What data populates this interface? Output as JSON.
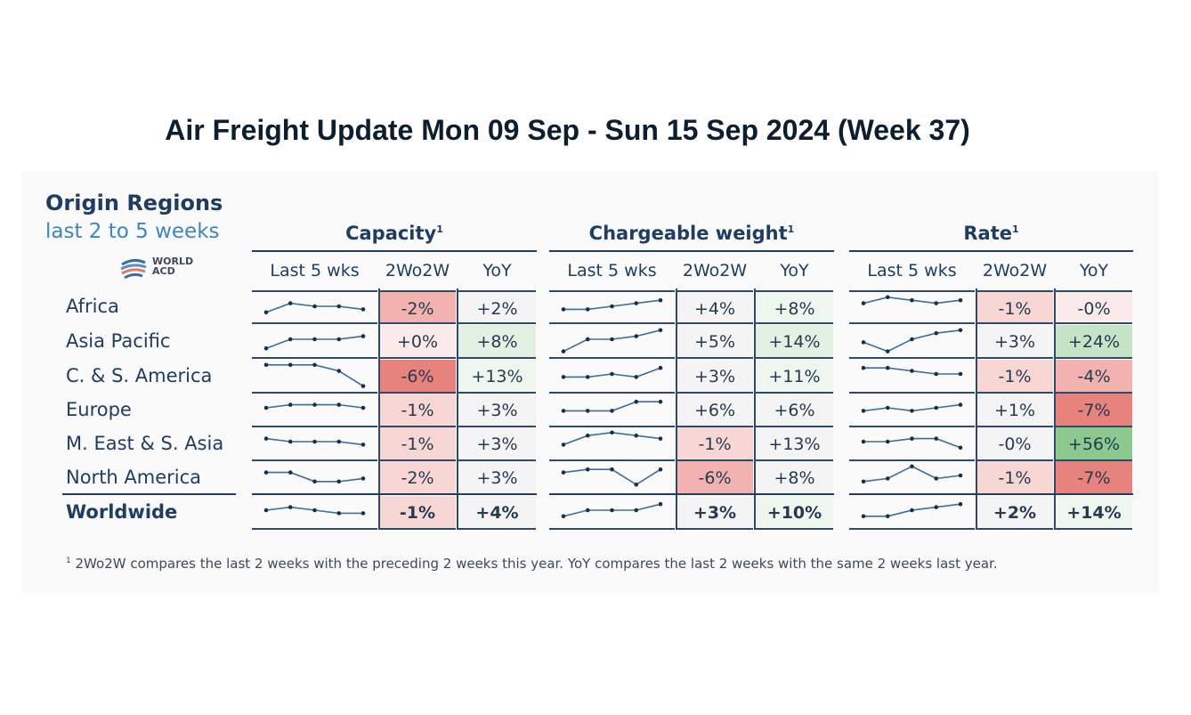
{
  "title": "Air Freight Update Mon 09 Sep - Sun 15 Sep 2024 (Week 37)",
  "left_header": {
    "title": "Origin Regions",
    "subtitle": "last 2 to 5 weeks"
  },
  "logo": {
    "line1": "WORLD",
    "line2": "ACD"
  },
  "colors": {
    "red_strong": "#e8827c",
    "red_mid": "#f2b3b0",
    "red_light": "#f7d6d4",
    "red_faint": "#faeae9",
    "green_strong": "#8cc98e",
    "green_mid": "#c5e4c6",
    "green_light": "#e3f1e3",
    "green_faint": "#eef6ee",
    "neutral": "#f4f4f5",
    "line": "#3a6ea0"
  },
  "chart_data": {
    "type": "table",
    "title": "Air Freight Update Mon 09 Sep - Sun 15 Sep 2024 (Week 37)",
    "footnote_marker": "1",
    "footnote": "2Wo2W compares the last 2 weeks with the preceding 2 weeks this year. YoY compares the last 2 weeks with the same 2 weeks last year.",
    "regions": [
      "Africa",
      "Asia Pacific",
      "C. & S. America",
      "Europe",
      "M. East & S. Asia",
      "North America",
      "Worldwide"
    ],
    "groups": [
      {
        "name": "Capacity",
        "marker": "1",
        "columns": [
          "Last 5 wks",
          "2Wo2W",
          "YoY"
        ],
        "sparklines": [
          [
            3,
            6,
            5,
            5,
            4
          ],
          [
            2,
            5,
            5,
            5,
            6
          ],
          [
            8,
            8,
            8,
            6,
            1
          ],
          [
            5,
            6,
            6,
            6,
            5
          ],
          [
            6,
            5,
            5,
            5,
            4
          ],
          [
            6,
            6,
            3,
            3,
            4
          ],
          [
            5,
            6,
            5,
            4,
            4
          ]
        ],
        "wo2w": [
          "-2%",
          "+0%",
          "-6%",
          "-1%",
          "-1%",
          "-2%",
          "-1%"
        ],
        "wo2w_tone": [
          "red_mid",
          "red_faint",
          "red_strong",
          "red_light",
          "red_light",
          "red_light",
          "red_light"
        ],
        "yoy": [
          "+2%",
          "+8%",
          "+13%",
          "+3%",
          "+3%",
          "+3%",
          "+4%"
        ],
        "yoy_tone": [
          "neutral",
          "green_light",
          "green_faint",
          "neutral",
          "neutral",
          "neutral",
          "neutral"
        ]
      },
      {
        "name": "Chargeable weight",
        "marker": "1",
        "columns": [
          "Last 5 wks",
          "2Wo2W",
          "YoY"
        ],
        "sparklines": [
          [
            4,
            4,
            5,
            6,
            7
          ],
          [
            1,
            5,
            5,
            6,
            8
          ],
          [
            4,
            4,
            5,
            4,
            7
          ],
          [
            4,
            4,
            4,
            7,
            7
          ],
          [
            4,
            7,
            8,
            7,
            6
          ],
          [
            6,
            7,
            7,
            2,
            7
          ],
          [
            3,
            5,
            5,
            5,
            7
          ]
        ],
        "wo2w": [
          "+4%",
          "+5%",
          "+3%",
          "+6%",
          "-1%",
          "-6%",
          "+3%"
        ],
        "wo2w_tone": [
          "neutral",
          "neutral",
          "neutral",
          "neutral",
          "red_light",
          "red_mid",
          "neutral"
        ],
        "yoy": [
          "+8%",
          "+14%",
          "+11%",
          "+6%",
          "+13%",
          "+8%",
          "+10%"
        ],
        "yoy_tone": [
          "green_faint",
          "green_light",
          "green_faint",
          "neutral",
          "neutral",
          "neutral",
          "green_faint"
        ]
      },
      {
        "name": "Rate",
        "marker": "1",
        "columns": [
          "Last 5 wks",
          "2Wo2W",
          "YoY"
        ],
        "sparklines": [
          [
            6,
            8,
            7,
            6,
            7
          ],
          [
            4,
            1,
            5,
            7,
            8
          ],
          [
            7,
            7,
            6,
            5,
            5
          ],
          [
            4,
            5,
            4,
            5,
            6
          ],
          [
            5,
            5,
            6,
            6,
            3
          ],
          [
            3,
            4,
            8,
            4,
            5
          ],
          [
            3,
            3,
            5,
            6,
            7
          ]
        ],
        "wo2w": [
          "-1%",
          "+3%",
          "-1%",
          "+1%",
          "-0%",
          "-1%",
          "+2%"
        ],
        "wo2w_tone": [
          "red_light",
          "neutral",
          "red_light",
          "neutral",
          "neutral",
          "red_light",
          "neutral"
        ],
        "yoy": [
          "-0%",
          "+24%",
          "-4%",
          "-7%",
          "+56%",
          "-7%",
          "+14%"
        ],
        "yoy_tone": [
          "red_faint",
          "green_mid",
          "red_mid",
          "red_strong",
          "green_strong",
          "red_strong",
          "green_faint"
        ]
      }
    ]
  }
}
